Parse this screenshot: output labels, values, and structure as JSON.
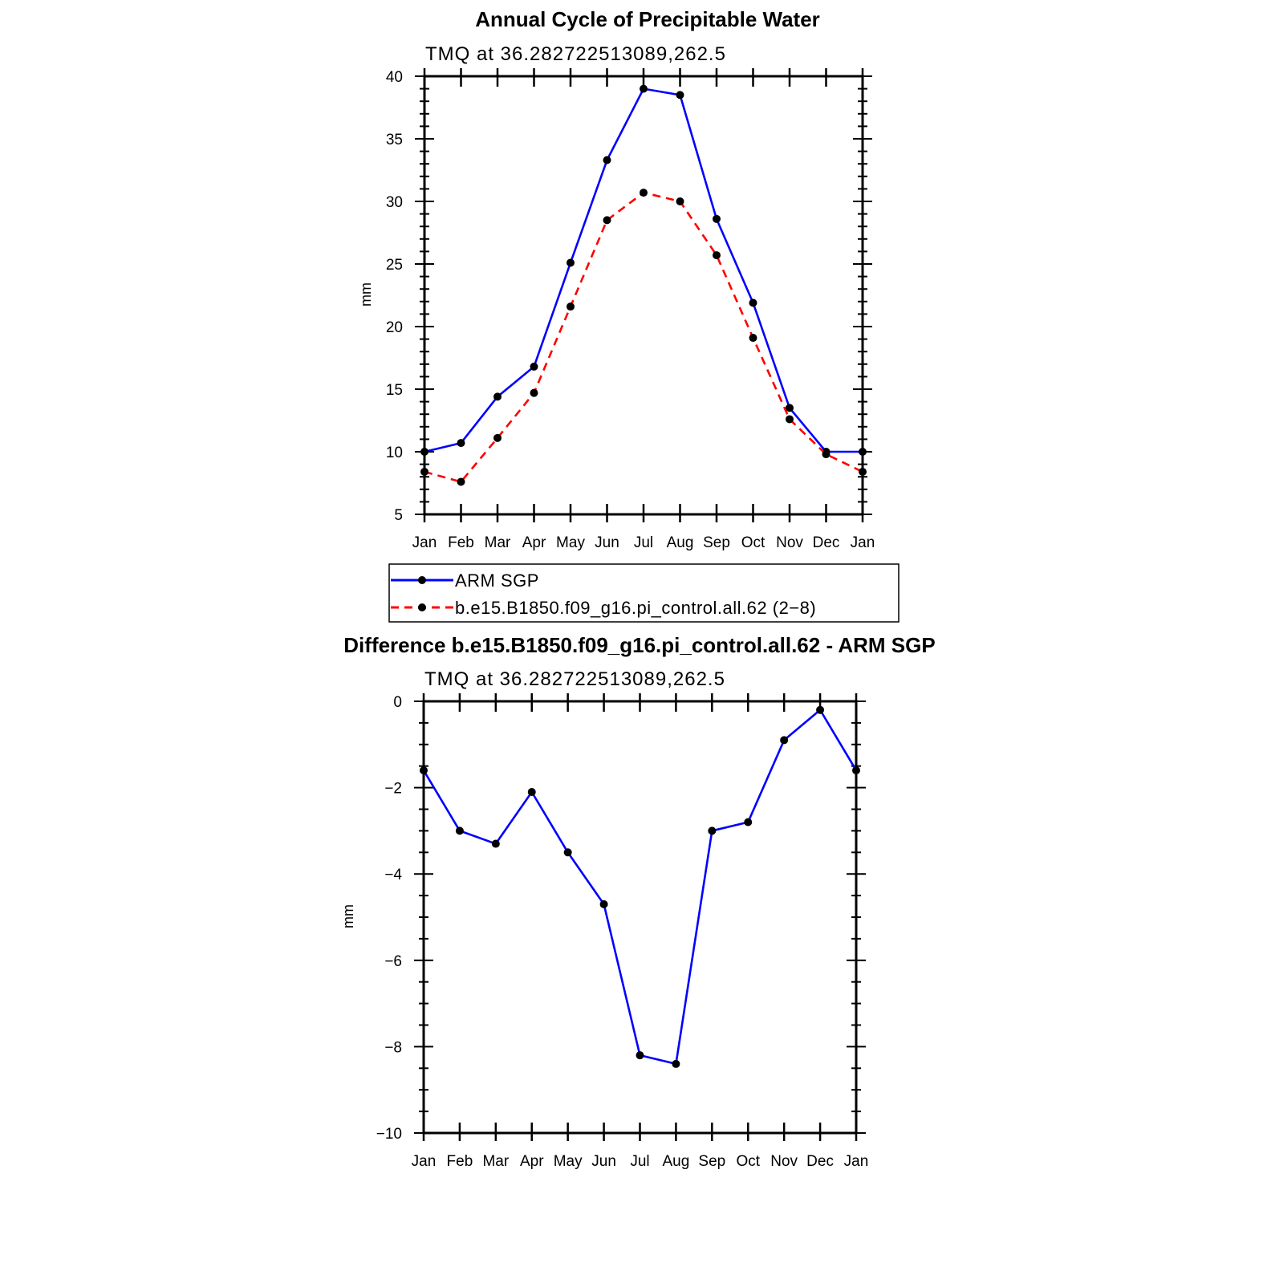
{
  "chart_data": [
    {
      "type": "line",
      "title": "Annual Cycle of Precipitable Water",
      "subtitle": "TMQ at 36.282722513089,262.5",
      "ylabel": "mm",
      "xlabel": "",
      "categories": [
        "Jan",
        "Feb",
        "Mar",
        "Apr",
        "May",
        "Jun",
        "Jul",
        "Aug",
        "Sep",
        "Oct",
        "Nov",
        "Dec",
        "Jan"
      ],
      "ylim": [
        5,
        40
      ],
      "yticks": [
        "5",
        "10",
        "15",
        "20",
        "25",
        "30",
        "35",
        "40"
      ],
      "grid": false,
      "series": [
        {
          "name": "ARM SGP",
          "color": "#0000ff",
          "dash": "solid",
          "values": [
            10.0,
            10.7,
            14.4,
            16.8,
            25.1,
            33.3,
            39.0,
            38.5,
            28.6,
            21.9,
            13.5,
            10.0,
            10.0
          ]
        },
        {
          "name": "b.e15.B1850.f09_g16.pi_control.all.62 (2−8)",
          "color": "#ff0000",
          "dash": "dashed",
          "values": [
            8.4,
            7.6,
            11.1,
            14.7,
            21.6,
            28.5,
            30.7,
            30.0,
            25.7,
            19.1,
            12.6,
            9.8,
            8.4
          ]
        }
      ],
      "legend_position": "below"
    },
    {
      "type": "line",
      "title": "Difference b.e15.B1850.f09_g16.pi_control.all.62 - ARM SGP",
      "subtitle": "TMQ at 36.282722513089,262.5",
      "ylabel": "mm",
      "xlabel": "",
      "categories": [
        "Jan",
        "Feb",
        "Mar",
        "Apr",
        "May",
        "Jun",
        "Jul",
        "Aug",
        "Sep",
        "Oct",
        "Nov",
        "Dec",
        "Jan"
      ],
      "ylim": [
        -10,
        0
      ],
      "yticks": [
        "−10",
        "−8",
        "−6",
        "−4",
        "−2",
        "0"
      ],
      "grid": false,
      "series": [
        {
          "color": "#0000ff",
          "dash": "solid",
          "values": [
            -1.6,
            -3.0,
            -3.3,
            -2.1,
            -3.5,
            -4.7,
            -8.2,
            -8.4,
            -3.0,
            -2.8,
            -0.9,
            -0.2,
            -1.6
          ]
        }
      ]
    }
  ]
}
